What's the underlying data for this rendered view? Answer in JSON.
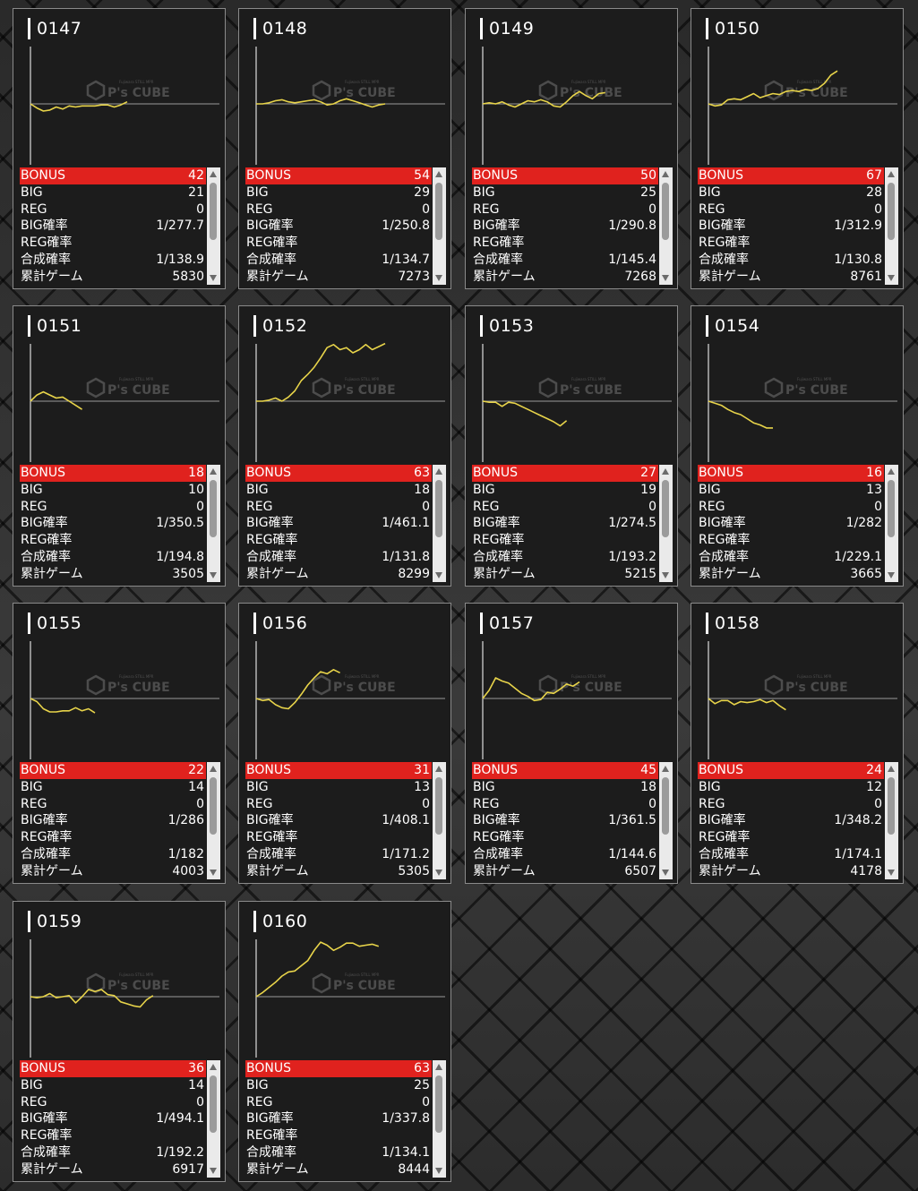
{
  "watermark": {
    "brand": "P's CUBE",
    "tagline": "Fujiwara STILL MPR"
  },
  "labels": {
    "bonus": "BONUS",
    "big": "BIG",
    "reg": "REG",
    "big_rate": "BIG確率",
    "reg_rate": "REG確率",
    "combined_rate": "合成確率",
    "total_games": "累計ゲーム"
  },
  "colors": {
    "bonus_bg": "#e0221e",
    "line": "#e8d44a"
  },
  "machines": [
    {
      "id": "0147",
      "bonus": "42",
      "big": "21",
      "reg": "0",
      "big_rate": "1/277.7",
      "reg_rate": "",
      "combined_rate": "1/138.9",
      "total_games": "5830",
      "graph": [
        0,
        -4,
        -7,
        -6,
        -3,
        -5,
        -2,
        -3,
        -2,
        -2,
        -2,
        -1,
        -1,
        -3,
        -1,
        2
      ]
    },
    {
      "id": "0148",
      "bonus": "54",
      "big": "29",
      "reg": "0",
      "big_rate": "1/250.8",
      "reg_rate": "",
      "combined_rate": "1/134.7",
      "total_games": "7273",
      "graph": [
        0,
        0,
        1,
        3,
        4,
        2,
        1,
        2,
        3,
        4,
        2,
        -1,
        0,
        3,
        5,
        3,
        1,
        -1,
        -3,
        -1,
        0
      ]
    },
    {
      "id": "0149",
      "bonus": "50",
      "big": "25",
      "reg": "0",
      "big_rate": "1/290.8",
      "reg_rate": "",
      "combined_rate": "1/145.4",
      "total_games": "7268",
      "graph": [
        0,
        1,
        0,
        2,
        -1,
        -3,
        0,
        3,
        2,
        4,
        2,
        -2,
        -3,
        2,
        8,
        12,
        8,
        5,
        10,
        11
      ]
    },
    {
      "id": "0150",
      "bonus": "67",
      "big": "28",
      "reg": "0",
      "big_rate": "1/312.9",
      "reg_rate": "",
      "combined_rate": "1/130.8",
      "total_games": "8761",
      "graph": [
        0,
        -2,
        -1,
        4,
        5,
        4,
        7,
        10,
        6,
        8,
        10,
        9,
        12,
        13,
        12,
        14,
        13,
        15,
        20,
        28,
        32
      ]
    },
    {
      "id": "0151",
      "bonus": "18",
      "big": "10",
      "reg": "0",
      "big_rate": "1/350.5",
      "reg_rate": "",
      "combined_rate": "1/194.8",
      "total_games": "3505",
      "graph": [
        0,
        6,
        9,
        6,
        3,
        4,
        0,
        -4,
        -8
      ]
    },
    {
      "id": "0152",
      "bonus": "63",
      "big": "18",
      "reg": "0",
      "big_rate": "1/461.1",
      "reg_rate": "",
      "combined_rate": "1/131.8",
      "total_games": "8299",
      "graph": [
        0,
        0,
        1,
        3,
        0,
        4,
        10,
        20,
        26,
        33,
        42,
        52,
        55,
        50,
        52,
        47,
        50,
        55,
        50,
        53,
        56
      ]
    },
    {
      "id": "0153",
      "bonus": "27",
      "big": "19",
      "reg": "0",
      "big_rate": "1/274.5",
      "reg_rate": "",
      "combined_rate": "1/193.2",
      "total_games": "5215",
      "graph": [
        0,
        -1,
        -1,
        -5,
        -1,
        -2,
        -5,
        -8,
        -11,
        -14,
        -17,
        -20,
        -24,
        -19
      ]
    },
    {
      "id": "0154",
      "bonus": "16",
      "big": "13",
      "reg": "0",
      "big_rate": "1/282",
      "reg_rate": "",
      "combined_rate": "1/229.1",
      "total_games": "3665",
      "graph": [
        0,
        -2,
        -4,
        -8,
        -11,
        -13,
        -17,
        -21,
        -23,
        -26,
        -26
      ]
    },
    {
      "id": "0155",
      "bonus": "22",
      "big": "14",
      "reg": "0",
      "big_rate": "1/286",
      "reg_rate": "",
      "combined_rate": "1/182",
      "total_games": "4003",
      "graph": [
        0,
        -3,
        -10,
        -13,
        -13,
        -12,
        -12,
        -9,
        -12,
        -10,
        -14
      ]
    },
    {
      "id": "0156",
      "bonus": "31",
      "big": "13",
      "reg": "0",
      "big_rate": "1/408.1",
      "reg_rate": "",
      "combined_rate": "1/171.2",
      "total_games": "5305",
      "graph": [
        0,
        -2,
        -1,
        -6,
        -9,
        -10,
        -4,
        4,
        13,
        20,
        26,
        24,
        28,
        25
      ]
    },
    {
      "id": "0157",
      "bonus": "45",
      "big": "18",
      "reg": "0",
      "big_rate": "1/361.5",
      "reg_rate": "",
      "combined_rate": "1/144.6",
      "total_games": "6507",
      "graph": [
        0,
        8,
        20,
        17,
        15,
        10,
        5,
        2,
        -2,
        -1,
        6,
        5,
        9,
        14,
        12,
        16
      ]
    },
    {
      "id": "0158",
      "bonus": "24",
      "big": "12",
      "reg": "0",
      "big_rate": "1/348.2",
      "reg_rate": "",
      "combined_rate": "1/174.1",
      "total_games": "4178",
      "graph": [
        0,
        -5,
        -2,
        -2,
        -6,
        -3,
        -4,
        -3,
        -1,
        -4,
        -2,
        -7,
        -11
      ]
    },
    {
      "id": "0159",
      "bonus": "36",
      "big": "14",
      "reg": "0",
      "big_rate": "1/494.1",
      "reg_rate": "",
      "combined_rate": "1/192.2",
      "total_games": "6917",
      "graph": [
        0,
        -1,
        0,
        3,
        -1,
        0,
        1,
        -6,
        0,
        7,
        5,
        7,
        2,
        1,
        -5,
        -7,
        -9,
        -10,
        -3,
        1
      ]
    },
    {
      "id": "0160",
      "bonus": "63",
      "big": "25",
      "reg": "0",
      "big_rate": "1/337.8",
      "reg_rate": "",
      "combined_rate": "1/134.1",
      "total_games": "8444",
      "graph": [
        0,
        4,
        9,
        14,
        20,
        24,
        25,
        30,
        35,
        45,
        53,
        50,
        45,
        48,
        52,
        52,
        49,
        50,
        51,
        49
      ]
    }
  ]
}
